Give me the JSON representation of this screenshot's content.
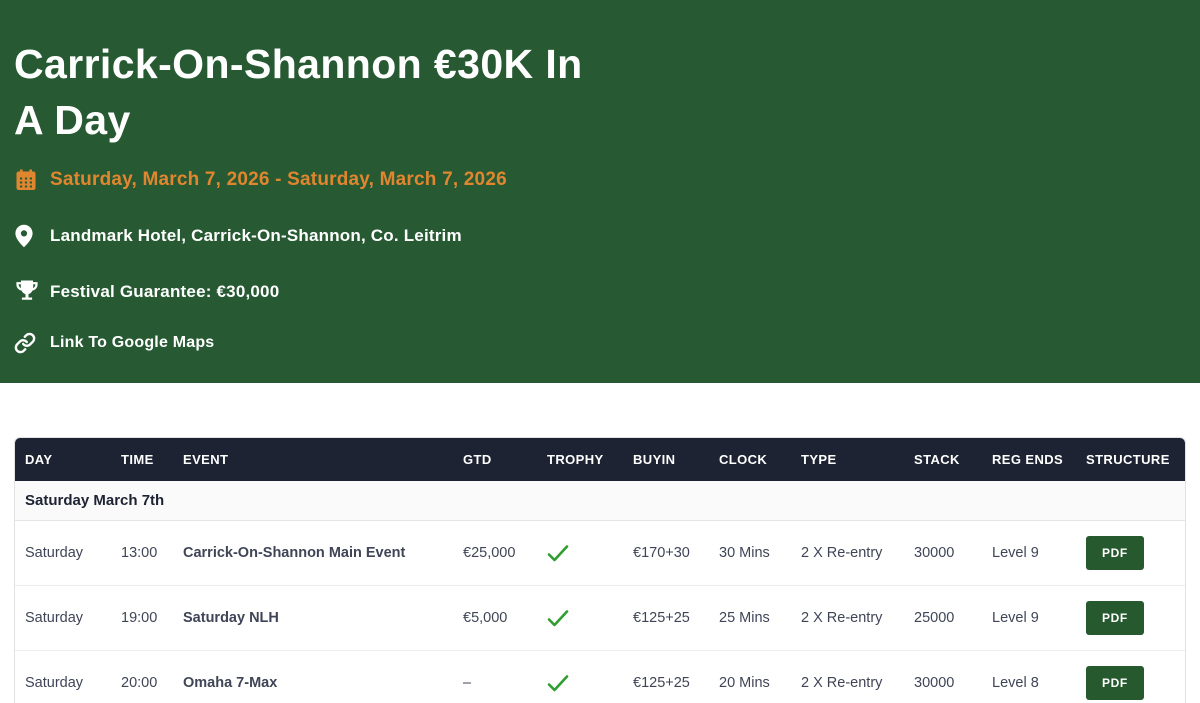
{
  "hero": {
    "title_lines": [
      "Carrick-On-Shannon €30K In",
      "A Day"
    ],
    "date_range": "Saturday, March 7, 2026 - Saturday, March 7, 2026",
    "venue": "Landmark Hotel, Carrick-On-Shannon, Co. Leitrim",
    "guarantee": "Festival Guarantee: €30,000",
    "maps_link_label": "Link To Google Maps",
    "icons": {
      "date": "calendar-icon",
      "venue": "location-pin-icon",
      "guarantee": "trophy-icon",
      "maps": "link-icon"
    }
  },
  "colors": {
    "hero_green": "#275a33",
    "accent_orange": "#e0862f",
    "table_header_navy": "#1d2333",
    "check_green": "#2e9e2e",
    "pdf_button_green": "#27592f"
  },
  "table": {
    "columns": [
      "DAY",
      "TIME",
      "EVENT",
      "GTD",
      "TROPHY",
      "BUYIN",
      "CLOCK",
      "TYPE",
      "STACK",
      "REG ENDS",
      "STRUCTURE"
    ],
    "section_header": "Saturday March 7th",
    "trophy_icon": "check-icon",
    "rows": [
      {
        "day": "Saturday",
        "time": "13:00",
        "event": "Carrick-On-Shannon Main Event",
        "gtd": "€25,000",
        "trophy": true,
        "buyin": "€170+30",
        "clock": "30 Mins",
        "type": "2 X Re-entry",
        "stack": "30000",
        "reg_ends": "Level 9",
        "structure": "PDF"
      },
      {
        "day": "Saturday",
        "time": "19:00",
        "event": "Saturday NLH",
        "gtd": "€5,000",
        "trophy": true,
        "buyin": "€125+25",
        "clock": "25 Mins",
        "type": "2 X Re-entry",
        "stack": "25000",
        "reg_ends": "Level 9",
        "structure": "PDF"
      },
      {
        "day": "Saturday",
        "time": "20:00",
        "event": "Omaha 7-Max",
        "gtd": "–",
        "trophy": true,
        "buyin": "€125+25",
        "clock": "20 Mins",
        "type": "2 X Re-entry",
        "stack": "30000",
        "reg_ends": "Level 8",
        "structure": "PDF"
      }
    ]
  }
}
